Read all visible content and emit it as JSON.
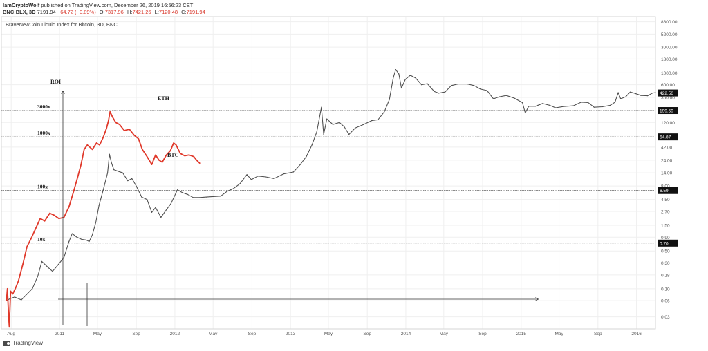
{
  "header": {
    "author": "IamCryptoWolf",
    "published_text": "published on TradingView.com, December 26, 2019 16:56:23 CET",
    "symbol": "BNC:BLX, 3D",
    "last": "7191.94",
    "change": "−64.72 (−0.89%)",
    "o_label": "O:",
    "o_value": "7317.96",
    "h_label": "H:",
    "h_value": "7421.26",
    "l_label": "L:",
    "l_value": "7120.48",
    "c_label": "C:",
    "c_value": "7191.94"
  },
  "footer": {
    "brand": "TradingView"
  },
  "colors": {
    "btc": "#505050",
    "eth": "#e0392b",
    "grid": "#efefef",
    "hline": "#444444",
    "badge_bg": "#111111",
    "badge_text": "#ffffff"
  },
  "chart_data": {
    "type": "line",
    "title": "BraveNewCoin Liquid Index for Bitcoin, 3D, BNC",
    "y_scale": "log",
    "ylim": [
      0.018,
      11000
    ],
    "y_ticks": [
      "8800.00",
      "5200.00",
      "3000.00",
      "1800.00",
      "1000.00",
      "600.00",
      "350.00",
      "200.00",
      "120.00",
      "70.00",
      "42.00",
      "24.00",
      "14.00",
      "8.00",
      "4.50",
      "2.70",
      "1.50",
      "0.90",
      "0.50",
      "0.30",
      "0.18",
      "0.10",
      "0.06",
      "0.03"
    ],
    "x_ticks": [
      "Aug",
      "2011",
      "May",
      "Sep",
      "2012",
      "May",
      "Sep",
      "2013",
      "May",
      "Sep",
      "2014",
      "May",
      "Sep",
      "2015",
      "May",
      "Sep",
      "2016"
    ],
    "x_tick_dates": [
      "2010-08-01",
      "2011-01-01",
      "2011-05-01",
      "2011-09-01",
      "2012-01-01",
      "2012-05-01",
      "2012-09-01",
      "2013-01-01",
      "2013-05-01",
      "2013-09-01",
      "2014-01-01",
      "2014-05-01",
      "2014-09-01",
      "2015-01-01",
      "2015-05-01",
      "2015-09-01",
      "2016-01-01"
    ],
    "xlim": [
      "2010-07-01",
      "2016-03-01"
    ],
    "price_badges": [
      "422.56",
      "199.59",
      "64.87",
      "6.59",
      "0.70"
    ],
    "roi_levels": [
      {
        "label": "3000x",
        "value": 199.59
      },
      {
        "label": "1000x",
        "value": 64.87
      },
      {
        "label": "100x",
        "value": 6.59
      },
      {
        "label": "10x",
        "value": 0.7
      }
    ],
    "base_value": 0.064,
    "annotations": {
      "roi": "ROI",
      "eth": "ETH",
      "btc": "BTC"
    },
    "series": [
      {
        "name": "BTC",
        "points": [
          [
            "2010-07-17",
            0.06
          ],
          [
            "2010-07-28",
            0.065
          ],
          [
            "2010-08-12",
            0.07
          ],
          [
            "2010-09-02",
            0.062
          ],
          [
            "2010-10-07",
            0.1
          ],
          [
            "2010-10-24",
            0.17
          ],
          [
            "2010-11-06",
            0.32
          ],
          [
            "2010-11-25",
            0.25
          ],
          [
            "2010-12-10",
            0.21
          ],
          [
            "2010-12-28",
            0.28
          ],
          [
            "2011-01-15",
            0.38
          ],
          [
            "2011-01-31",
            0.75
          ],
          [
            "2011-02-10",
            1.05
          ],
          [
            "2011-02-25",
            0.9
          ],
          [
            "2011-03-12",
            0.82
          ],
          [
            "2011-03-26",
            0.8
          ],
          [
            "2011-04-05",
            0.75
          ],
          [
            "2011-04-15",
            1.0
          ],
          [
            "2011-04-26",
            1.7
          ],
          [
            "2011-05-06",
            3.5
          ],
          [
            "2011-05-20",
            7.0
          ],
          [
            "2011-06-02",
            14.0
          ],
          [
            "2011-06-08",
            31.0
          ],
          [
            "2011-06-14",
            22.0
          ],
          [
            "2011-06-22",
            16.0
          ],
          [
            "2011-07-05",
            15.0
          ],
          [
            "2011-07-20",
            14.0
          ],
          [
            "2011-08-05",
            10.0
          ],
          [
            "2011-08-18",
            11.0
          ],
          [
            "2011-09-01",
            8.0
          ],
          [
            "2011-09-18",
            5.0
          ],
          [
            "2011-10-05",
            4.5
          ],
          [
            "2011-10-20",
            2.6
          ],
          [
            "2011-11-01",
            3.2
          ],
          [
            "2011-11-18",
            2.1
          ],
          [
            "2011-12-05",
            2.9
          ],
          [
            "2011-12-20",
            3.8
          ],
          [
            "2012-01-09",
            6.8
          ],
          [
            "2012-01-25",
            6.0
          ],
          [
            "2012-02-10",
            5.6
          ],
          [
            "2012-02-28",
            4.9
          ],
          [
            "2012-03-20",
            4.9
          ],
          [
            "2012-04-10",
            5.0
          ],
          [
            "2012-05-01",
            5.1
          ],
          [
            "2012-05-25",
            5.2
          ],
          [
            "2012-06-15",
            6.4
          ],
          [
            "2012-07-05",
            7.2
          ],
          [
            "2012-07-25",
            8.8
          ],
          [
            "2012-08-16",
            13.0
          ],
          [
            "2012-08-30",
            10.5
          ],
          [
            "2012-09-20",
            12.2
          ],
          [
            "2012-10-15",
            11.8
          ],
          [
            "2012-11-10",
            11.0
          ],
          [
            "2012-12-10",
            13.4
          ],
          [
            "2013-01-10",
            14.5
          ],
          [
            "2013-02-01",
            20.0
          ],
          [
            "2013-02-20",
            28.0
          ],
          [
            "2013-03-10",
            46.0
          ],
          [
            "2013-03-25",
            80.0
          ],
          [
            "2013-04-09",
            230.0
          ],
          [
            "2013-04-16",
            72.0
          ],
          [
            "2013-04-26",
            140.0
          ],
          [
            "2013-05-15",
            110.0
          ],
          [
            "2013-06-05",
            120.0
          ],
          [
            "2013-06-20",
            100.0
          ],
          [
            "2013-07-05",
            72.0
          ],
          [
            "2013-07-25",
            95.0
          ],
          [
            "2013-08-20",
            110.0
          ],
          [
            "2013-09-15",
            130.0
          ],
          [
            "2013-10-05",
            135.0
          ],
          [
            "2013-10-25",
            190.0
          ],
          [
            "2013-11-10",
            320.0
          ],
          [
            "2013-11-22",
            800.0
          ],
          [
            "2013-11-30",
            1150.0
          ],
          [
            "2013-12-10",
            950.0
          ],
          [
            "2013-12-18",
            520.0
          ],
          [
            "2013-12-30",
            750.0
          ],
          [
            "2014-01-15",
            900.0
          ],
          [
            "2014-02-01",
            800.0
          ],
          [
            "2014-02-20",
            600.0
          ],
          [
            "2014-03-10",
            630.0
          ],
          [
            "2014-04-01",
            450.0
          ],
          [
            "2014-04-15",
            420.0
          ],
          [
            "2014-05-05",
            440.0
          ],
          [
            "2014-05-25",
            580.0
          ],
          [
            "2014-06-15",
            620.0
          ],
          [
            "2014-07-15",
            620.0
          ],
          [
            "2014-08-05",
            580.0
          ],
          [
            "2014-08-25",
            500.0
          ],
          [
            "2014-09-15",
            470.0
          ],
          [
            "2014-10-05",
            330.0
          ],
          [
            "2014-10-25",
            360.0
          ],
          [
            "2014-11-15",
            380.0
          ],
          [
            "2014-12-10",
            340.0
          ],
          [
            "2015-01-05",
            280.0
          ],
          [
            "2015-01-14",
            180.0
          ],
          [
            "2015-01-25",
            240.0
          ],
          [
            "2015-02-15",
            240.0
          ],
          [
            "2015-03-10",
            270.0
          ],
          [
            "2015-04-01",
            250.0
          ],
          [
            "2015-04-20",
            225.0
          ],
          [
            "2015-05-15",
            237.0
          ],
          [
            "2015-06-15",
            245.0
          ],
          [
            "2015-07-10",
            285.0
          ],
          [
            "2015-08-01",
            280.0
          ],
          [
            "2015-08-20",
            230.0
          ],
          [
            "2015-09-15",
            235.0
          ],
          [
            "2015-10-10",
            250.0
          ],
          [
            "2015-10-25",
            285.0
          ],
          [
            "2015-11-04",
            430.0
          ],
          [
            "2015-11-12",
            330.0
          ],
          [
            "2015-11-28",
            360.0
          ],
          [
            "2015-12-12",
            440.0
          ],
          [
            "2015-12-25",
            420.0
          ],
          [
            "2016-01-15",
            380.0
          ],
          [
            "2016-02-05",
            375.0
          ],
          [
            "2016-02-20",
            420.0
          ],
          [
            "2016-03-01",
            430.0
          ]
        ]
      },
      {
        "name": "ETH",
        "points": [
          [
            "2010-07-17",
            0.06
          ],
          [
            "2010-07-20",
            0.1
          ],
          [
            "2010-07-24",
            0.03
          ],
          [
            "2010-07-26",
            0.02
          ],
          [
            "2010-07-30",
            0.09
          ],
          [
            "2010-08-06",
            0.08
          ],
          [
            "2010-08-14",
            0.1
          ],
          [
            "2010-08-24",
            0.14
          ],
          [
            "2010-09-08",
            0.3
          ],
          [
            "2010-09-20",
            0.6
          ],
          [
            "2010-10-05",
            0.9
          ],
          [
            "2010-10-20",
            1.4
          ],
          [
            "2010-11-01",
            2.0
          ],
          [
            "2010-11-15",
            1.8
          ],
          [
            "2010-12-01",
            2.5
          ],
          [
            "2010-12-15",
            2.3
          ],
          [
            "2010-12-30",
            2.0
          ],
          [
            "2011-01-15",
            2.1
          ],
          [
            "2011-01-31",
            3.3
          ],
          [
            "2011-02-15",
            6.5
          ],
          [
            "2011-02-28",
            12.0
          ],
          [
            "2011-03-10",
            20.0
          ],
          [
            "2011-03-20",
            38.0
          ],
          [
            "2011-03-30",
            46.0
          ],
          [
            "2011-04-15",
            38.0
          ],
          [
            "2011-04-28",
            50.0
          ],
          [
            "2011-05-08",
            46.0
          ],
          [
            "2011-05-20",
            65.0
          ],
          [
            "2011-05-30",
            95.0
          ],
          [
            "2011-06-05",
            130.0
          ],
          [
            "2011-06-10",
            190.0
          ],
          [
            "2011-06-18",
            150.0
          ],
          [
            "2011-06-28",
            120.0
          ],
          [
            "2011-07-10",
            110.0
          ],
          [
            "2011-07-25",
            85.0
          ],
          [
            "2011-08-10",
            90.0
          ],
          [
            "2011-08-25",
            70.0
          ],
          [
            "2011-09-08",
            60.0
          ],
          [
            "2011-09-20",
            38.0
          ],
          [
            "2011-10-05",
            28.0
          ],
          [
            "2011-10-20",
            20.0
          ],
          [
            "2011-11-01",
            30.0
          ],
          [
            "2011-11-12",
            24.0
          ],
          [
            "2011-11-22",
            22.0
          ],
          [
            "2011-12-05",
            30.0
          ],
          [
            "2011-12-18",
            36.0
          ],
          [
            "2011-12-28",
            50.0
          ],
          [
            "2012-01-05",
            46.0
          ],
          [
            "2012-01-18",
            32.0
          ],
          [
            "2012-02-01",
            29.0
          ],
          [
            "2012-02-15",
            30.0
          ],
          [
            "2012-03-01",
            28.0
          ],
          [
            "2012-03-10",
            24.0
          ],
          [
            "2012-03-20",
            21.0
          ]
        ]
      }
    ]
  }
}
